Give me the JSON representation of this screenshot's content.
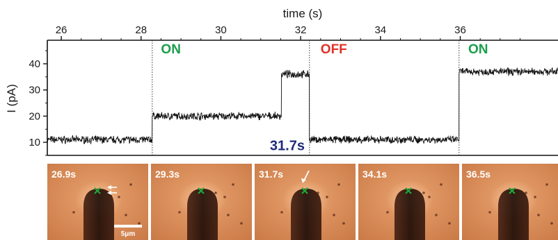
{
  "chart_data": {
    "type": "line",
    "title": "",
    "xlabel": "time (s)",
    "ylabel": "I (pA)",
    "xlim": [
      25.65,
      38.45
    ],
    "ylim": [
      5,
      49
    ],
    "xticks": [
      26,
      28,
      30,
      32,
      34,
      36
    ],
    "yticks": [
      10,
      20,
      30,
      40
    ],
    "grid": false,
    "series": [
      {
        "color": "#111111",
        "segments": [
          {
            "x_start": 25.65,
            "x_end": 28.28,
            "level": 11
          },
          {
            "x_start": 28.28,
            "x_end": 31.52,
            "level": 20
          },
          {
            "x_start": 31.52,
            "x_end": 32.22,
            "level": 36
          },
          {
            "x_start": 32.22,
            "x_end": 35.97,
            "level": 11
          },
          {
            "x_start": 35.97,
            "x_end": 38.45,
            "level": 37
          }
        ]
      }
    ],
    "switch_times": [
      28.28,
      32.22,
      35.97
    ],
    "annotations": [
      {
        "text": "ON",
        "x": 28.5,
        "y": 44,
        "color": "#1b9e4b"
      },
      {
        "text": "OFF",
        "x": 32.5,
        "y": 44,
        "color": "#e03127"
      },
      {
        "text": "ON",
        "x": 36.2,
        "y": 44,
        "color": "#1b9e4b"
      },
      {
        "text": "31.7s",
        "x": 31.7,
        "y": 7,
        "color": "#1f2a7a"
      }
    ],
    "frames": [
      {
        "label": "26.9s",
        "arrows": "double"
      },
      {
        "label": "29.3s",
        "arrows": "none"
      },
      {
        "label": "31.7s",
        "arrows": "single"
      },
      {
        "label": "34.1s",
        "arrows": "none"
      },
      {
        "label": "36.5s",
        "arrows": "none"
      }
    ],
    "scalebar_label": "5μm",
    "marker_color": "#1fa83a"
  }
}
